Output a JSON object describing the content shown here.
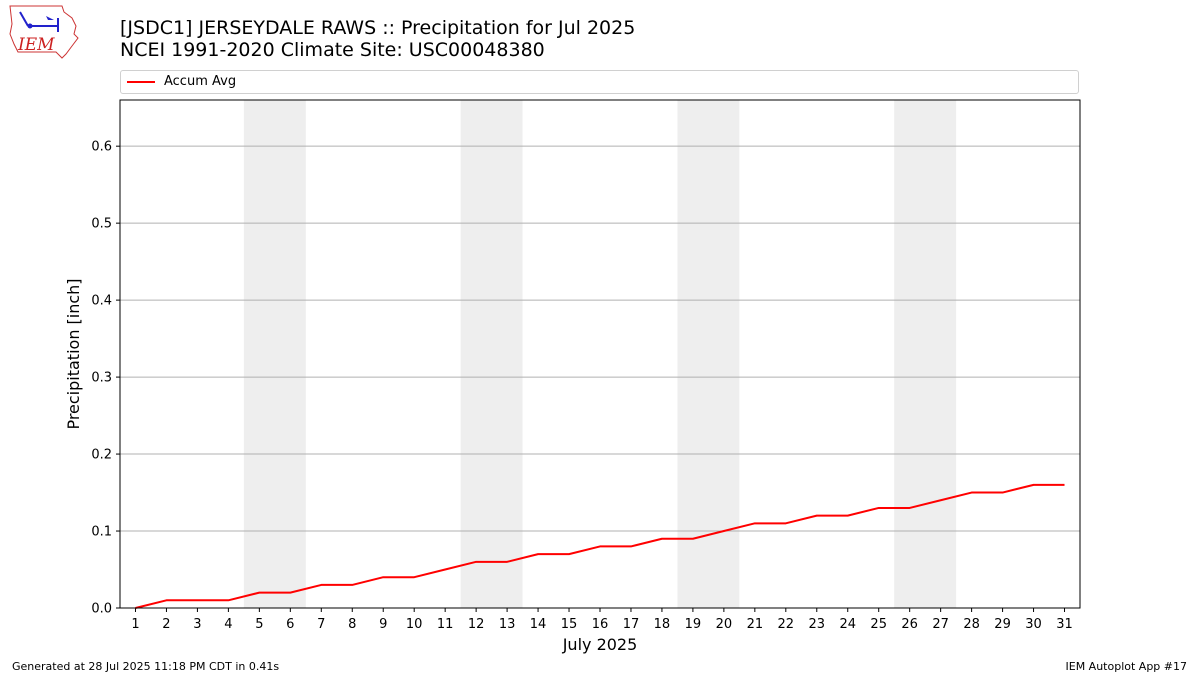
{
  "header": {
    "title_line1": "[JSDC1] JERSEYDALE RAWS :: Precipitation for Jul 2025",
    "title_line2": "NCEI 1991-2020 Climate Site: USC00048380"
  },
  "logo": {
    "text": "IEM",
    "icon": "iem-iowa-logo"
  },
  "footer": {
    "left": "Generated at 28 Jul 2025 11:18 PM CDT in 0.41s",
    "right": "IEM Autoplot App #17"
  },
  "chart_data": {
    "type": "line",
    "xlabel": "July 2025",
    "ylabel": "Precipitation [inch]",
    "x": [
      1,
      2,
      3,
      4,
      5,
      6,
      7,
      8,
      9,
      10,
      11,
      12,
      13,
      14,
      15,
      16,
      17,
      18,
      19,
      20,
      21,
      22,
      23,
      24,
      25,
      26,
      27,
      28,
      29,
      30,
      31
    ],
    "x_ticks": [
      "1",
      "2",
      "3",
      "4",
      "5",
      "6",
      "7",
      "8",
      "9",
      "10",
      "11",
      "12",
      "13",
      "14",
      "15",
      "16",
      "17",
      "18",
      "19",
      "20",
      "21",
      "22",
      "23",
      "24",
      "25",
      "26",
      "27",
      "28",
      "29",
      "30",
      "31"
    ],
    "y_ticks": [
      "0.0",
      "0.1",
      "0.2",
      "0.3",
      "0.4",
      "0.5",
      "0.6"
    ],
    "xlim": [
      0.5,
      31.5
    ],
    "ylim": [
      0,
      0.66
    ],
    "grid": "horizontal",
    "legend": "top, above plot",
    "weekend_bands": [
      [
        5,
        6
      ],
      [
        12,
        13
      ],
      [
        19,
        20
      ],
      [
        26,
        27
      ]
    ],
    "series": [
      {
        "name": "Accum Avg",
        "color": "#ff0000",
        "values": [
          0.0,
          0.01,
          0.01,
          0.01,
          0.02,
          0.02,
          0.03,
          0.03,
          0.04,
          0.04,
          0.05,
          0.06,
          0.06,
          0.07,
          0.07,
          0.08,
          0.08,
          0.09,
          0.09,
          0.1,
          0.11,
          0.11,
          0.12,
          0.12,
          0.13,
          0.13,
          0.14,
          0.15,
          0.15,
          0.16,
          0.16
        ]
      }
    ]
  }
}
